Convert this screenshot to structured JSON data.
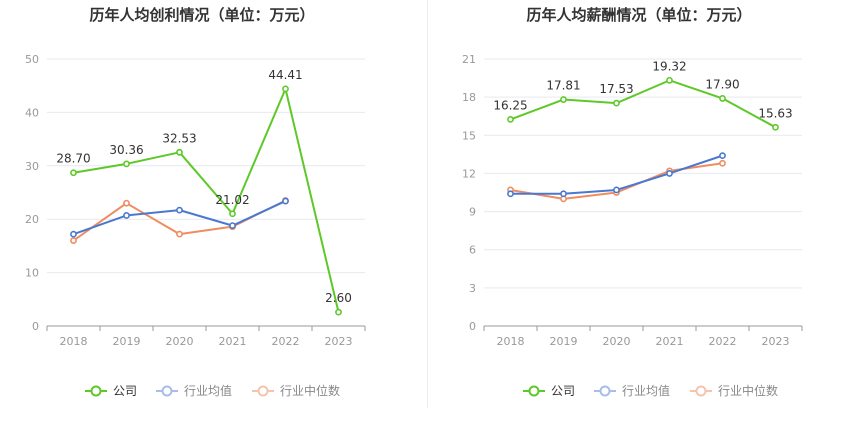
{
  "chart_data": [
    {
      "type": "line",
      "title": "历年人均创利情况（单位：万元）",
      "categories": [
        "2018",
        "2019",
        "2020",
        "2021",
        "2022",
        "2023"
      ],
      "ylim": [
        0,
        50
      ],
      "yticks": [
        "0",
        "10",
        "20",
        "30",
        "40",
        "50"
      ],
      "grid": true,
      "legend_position": "bottom",
      "series": [
        {
          "name": "公司",
          "color": "#5dc928",
          "values": [
            28.7,
            30.36,
            32.53,
            21.02,
            44.41,
            2.6
          ],
          "labels": [
            "28.70",
            "30.36",
            "32.53",
            "21.02",
            "44.41",
            "2.60"
          ]
        },
        {
          "name": "行业均值",
          "color": "#4a78d0",
          "values": [
            17.2,
            20.7,
            21.7,
            18.8,
            23.4,
            null
          ]
        },
        {
          "name": "行业中位数",
          "color": "#ef8c60",
          "values": [
            16.0,
            23.0,
            17.2,
            18.6,
            23.5,
            null
          ]
        }
      ]
    },
    {
      "type": "line",
      "title": "历年人均薪酬情况（单位：万元）",
      "categories": [
        "2018",
        "2019",
        "2020",
        "2021",
        "2022",
        "2023"
      ],
      "ylim": [
        0,
        21
      ],
      "yticks": [
        "0",
        "3",
        "6",
        "9",
        "12",
        "15",
        "18",
        "21"
      ],
      "grid": true,
      "legend_position": "bottom",
      "series": [
        {
          "name": "公司",
          "color": "#5dc928",
          "values": [
            16.25,
            17.81,
            17.53,
            19.32,
            17.9,
            15.63
          ],
          "labels": [
            "16.25",
            "17.81",
            "17.53",
            "19.32",
            "17.90",
            "15.63"
          ]
        },
        {
          "name": "行业均值",
          "color": "#4a78d0",
          "values": [
            10.4,
            10.4,
            10.7,
            12.0,
            13.4,
            null
          ]
        },
        {
          "name": "行业中位数",
          "color": "#ef8c60",
          "values": [
            10.7,
            10.0,
            10.5,
            12.2,
            12.8,
            null
          ]
        }
      ]
    }
  ]
}
